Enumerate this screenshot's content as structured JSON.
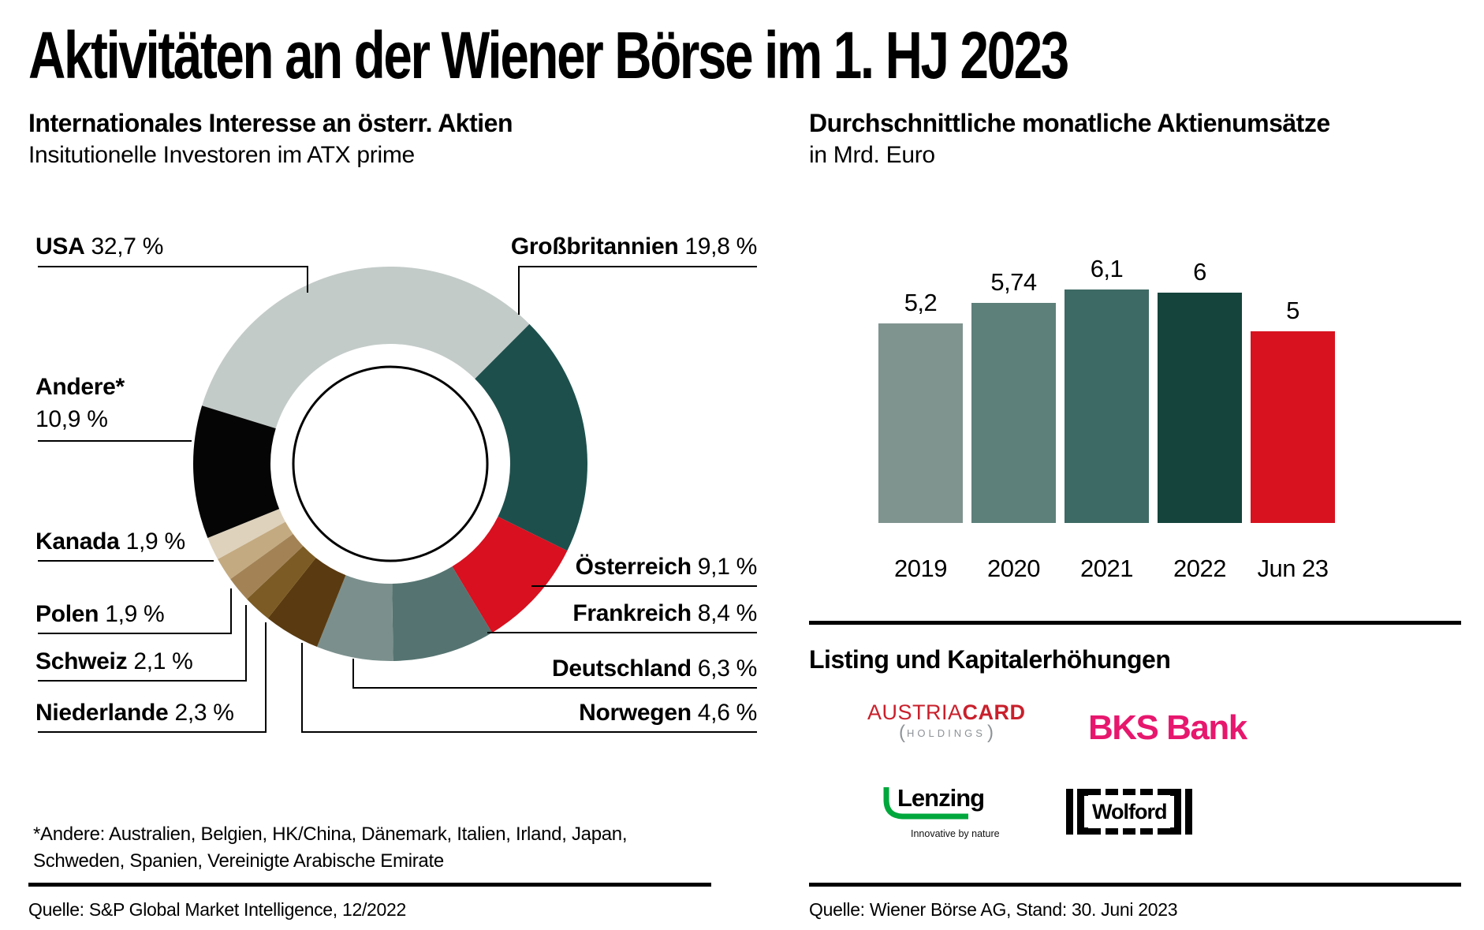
{
  "page": {
    "title": "Aktivitäten an der Wiener Börse im 1. HJ 2023"
  },
  "left": {
    "title": "Internationales Interesse an österr. Aktien",
    "subtitle": "Insitutionelle Investoren im ATX prime",
    "footnote1": "*Andere: Australien, Belgien, HK/China, Dänemark, Italien, Irland, Japan,",
    "footnote2": "Schweden, Spanien, Vereinigte Arabische Emirate",
    "source": "Quelle: S&P Global Market Intelligence, 12/2022"
  },
  "right": {
    "title": "Durchschnittliche monatliche Aktienumsätze",
    "subtitle": "in Mrd. Euro",
    "listing_heading": "Listing und Kapitalerhöhungen",
    "source": "Quelle: Wiener Börse AG, Stand: 30. Juni 2023"
  },
  "logos": {
    "austriacard": {
      "name_regular": "AUSTRIA",
      "name_bold": "CARD",
      "sub": "HOLDINGS",
      "color": "#c9202c",
      "sub_color": "#8d9296"
    },
    "bks": {
      "name": "BKS Bank",
      "color": "#e7176e"
    },
    "lenzing": {
      "name": "Lenzing",
      "tagline": "Innovative by nature",
      "swoosh_color": "#00a73c"
    },
    "wolford": {
      "name": "Wolford"
    }
  },
  "chart_data": [
    {
      "type": "pie",
      "variant": "donut",
      "title": "Internationales Interesse an österr. Aktien",
      "subtitle": "Insitutionelle Investoren im ATX prime",
      "legend_position": "callout-labels",
      "note": "*Andere: Australien, Belgien, HK/China, Dänemark, Italien, Irland, Japan, Schweden, Spanien, Vereinigte Arabische Emirate",
      "series": [
        {
          "id": "usa",
          "label": "USA",
          "value": 32.7,
          "display": "32,7 %",
          "color": "#c3cbc9"
        },
        {
          "id": "gb",
          "label": "Großbritannien",
          "value": 19.8,
          "display": "19,8 %",
          "color": "#1d504d"
        },
        {
          "id": "at",
          "label": "Österreich",
          "value": 9.1,
          "display": "9,1 %",
          "color": "#d8101f"
        },
        {
          "id": "fr",
          "label": "Frankreich",
          "value": 8.4,
          "display": "8,4 %",
          "color": "#557471"
        },
        {
          "id": "de",
          "label": "Deutschland",
          "value": 6.3,
          "display": "6,3 %",
          "color": "#7b908d"
        },
        {
          "id": "no",
          "label": "Norwegen",
          "value": 4.6,
          "display": "4,6 %",
          "color": "#5a3a10"
        },
        {
          "id": "nl",
          "label": "Niederlande",
          "value": 2.3,
          "display": "2,3 %",
          "color": "#7c5c24"
        },
        {
          "id": "ch",
          "label": "Schweiz",
          "value": 2.1,
          "display": "2,1 %",
          "color": "#a38356"
        },
        {
          "id": "pl",
          "label": "Polen",
          "value": 1.9,
          "display": "1,9 %",
          "color": "#c4aa80"
        },
        {
          "id": "ca",
          "label": "Kanada",
          "value": 1.9,
          "display": "1,9 %",
          "color": "#ded2bc"
        },
        {
          "id": "andere",
          "label": "Andere*",
          "value": 10.9,
          "display": "10,9 %",
          "color": "#050505"
        }
      ]
    },
    {
      "type": "bar",
      "title": "Durchschnittliche monatliche Aktienumsätze",
      "ylabel": "in Mrd. Euro",
      "categories": [
        "2019",
        "2020",
        "2021",
        "2022",
        "Jun 23"
      ],
      "values": [
        5.2,
        5.74,
        6.1,
        6.0,
        5.0
      ],
      "value_labels": [
        "5,2",
        "5,74",
        "6,1",
        "6",
        "5"
      ],
      "colors": [
        "#80948f",
        "#5d807b",
        "#3d6a64",
        "#15443c",
        "#d8121f"
      ],
      "ylim": [
        0,
        6.5
      ],
      "grid": false
    }
  ]
}
